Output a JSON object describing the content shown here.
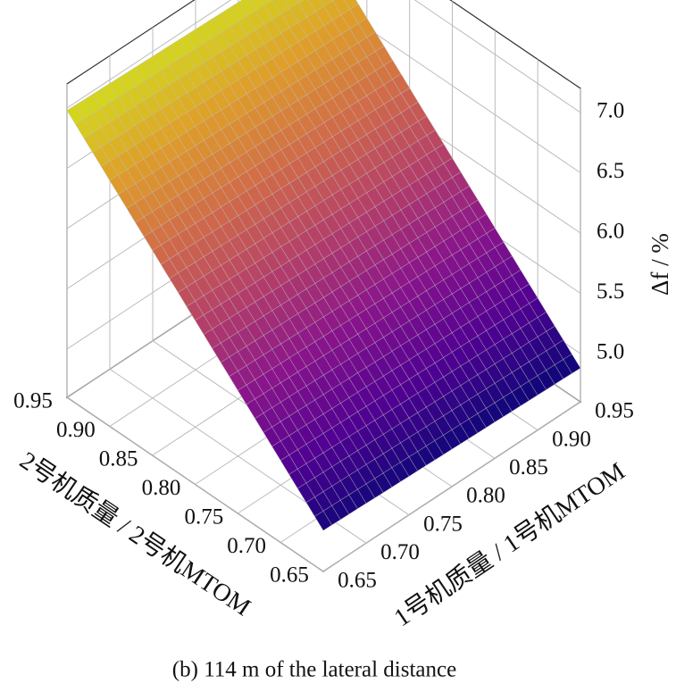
{
  "chart_data": {
    "type": "surface3d",
    "caption": "(b) 114 m of the lateral distance",
    "xlabel": "1号机质量 / 1号机MTOM",
    "ylabel": "2号机质量 / 2号机MTOM",
    "zlabel": "Δf / %",
    "x": [
      0.65,
      0.7,
      0.75,
      0.8,
      0.85,
      0.9,
      0.95
    ],
    "y": [
      0.65,
      0.7,
      0.75,
      0.8,
      0.85,
      0.9,
      0.95
    ],
    "z": [
      [
        4.94,
        4.93,
        4.92,
        4.91,
        4.9,
        4.89,
        4.88
      ],
      [
        5.28,
        5.27,
        5.26,
        5.25,
        5.24,
        5.23,
        5.22
      ],
      [
        5.62,
        5.61,
        5.6,
        5.59,
        5.58,
        5.57,
        5.56
      ],
      [
        5.96,
        5.95,
        5.94,
        5.93,
        5.92,
        5.91,
        5.9
      ],
      [
        6.3,
        6.29,
        6.28,
        6.27,
        6.26,
        6.25,
        6.24
      ],
      [
        6.64,
        6.63,
        6.62,
        6.61,
        6.6,
        6.59,
        6.58
      ],
      [
        6.98,
        6.97,
        6.96,
        6.95,
        6.94,
        6.93,
        6.92
      ]
    ],
    "colormap": [
      "#0d0887",
      "#5c01a6",
      "#9c179e",
      "#cc4778",
      "#ed7953",
      "#fdb42f",
      "#f0f921"
    ],
    "xlim": [
      0.65,
      0.95
    ],
    "ylim": [
      0.65,
      0.95
    ],
    "zlim": [
      4.6,
      7.2
    ],
    "xticks": [
      0.65,
      {
        "value": 0.7,
        "label": "0.70"
      },
      0.75,
      {
        "value": 0.8,
        "label": "0.80"
      },
      0.85,
      {
        "value": 0.9,
        "label": "0.90"
      },
      0.95
    ],
    "yticks": [
      0.65,
      {
        "value": 0.7,
        "label": "0.70"
      },
      0.75,
      {
        "value": 0.8,
        "label": "0.80"
      },
      0.85,
      {
        "value": 0.9,
        "label": "0.90"
      },
      0.95
    ],
    "zticks": [
      {
        "value": 5,
        "label": "5.0"
      },
      5.5,
      {
        "value": 6,
        "label": "6.0"
      },
      6.5,
      {
        "value": 7,
        "label": "7.0"
      }
    ],
    "grid": true
  }
}
